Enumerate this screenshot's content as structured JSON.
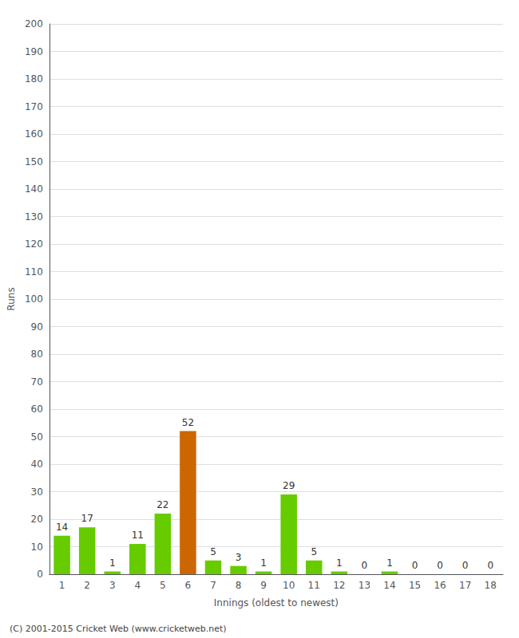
{
  "chart_data": {
    "type": "bar",
    "xlabel": "Innings (oldest to newest)",
    "ylabel": "Runs",
    "categories": [
      "1",
      "2",
      "3",
      "4",
      "5",
      "6",
      "7",
      "8",
      "9",
      "10",
      "11",
      "12",
      "13",
      "14",
      "15",
      "16",
      "17",
      "18"
    ],
    "values": [
      14,
      17,
      1,
      11,
      22,
      52,
      5,
      3,
      1,
      29,
      5,
      1,
      0,
      1,
      0,
      0,
      0,
      0
    ],
    "colors": [
      "#66cc00",
      "#66cc00",
      "#66cc00",
      "#66cc00",
      "#66cc00",
      "#cc6600",
      "#66cc00",
      "#66cc00",
      "#66cc00",
      "#66cc00",
      "#66cc00",
      "#66cc00",
      "#66cc00",
      "#66cc00",
      "#66cc00",
      "#66cc00",
      "#66cc00",
      "#66cc00"
    ],
    "ylim": [
      0,
      200
    ],
    "yticks": [
      0,
      10,
      20,
      30,
      40,
      50,
      60,
      70,
      80,
      90,
      100,
      110,
      120,
      130,
      140,
      150,
      160,
      170,
      180,
      190,
      200
    ],
    "grid": true,
    "data_labels": true,
    "annotations": [
      "(C) 2001-2015 Cricket Web (www.cricketweb.net)"
    ]
  }
}
